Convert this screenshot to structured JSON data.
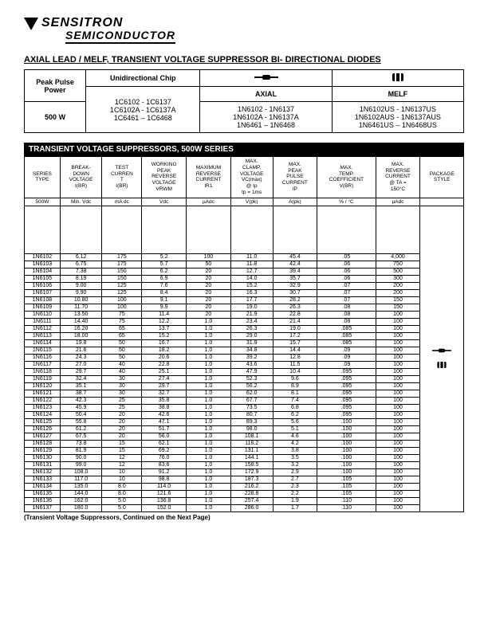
{
  "logo": {
    "line1": "SENSITRON",
    "line2": "SEMICONDUCTOR"
  },
  "main_title": "AXIAL LEAD / MELF, TRANSIENT VOLTAGE SUPPRESSOR BI- DIRECTIONAL DIODES",
  "product_table": {
    "headers": {
      "pulse": "Peak Pulse\nPower",
      "chip": "Unidirectional Chip",
      "axial": "AXIAL",
      "melf": "MELF"
    },
    "power": "500 W",
    "chip_lines": [
      "1C6102 - 1C6137",
      "1C6102A - 1C6137A",
      "1C6461 – 1C6468"
    ],
    "axial_lines": [
      "1N6102 - 1N6137",
      "1N6102A - 1N6137A",
      "1N6461 – 1N6468"
    ],
    "melf_lines": [
      "1N6102US - 1N6137US",
      "1N6102AUS - 1N6137AUS",
      "1N6461US – 1N6468US"
    ]
  },
  "section_title": "TRANSIENT VOLTAGE SUPPRESSORS, 500W SERIES",
  "columns": [
    "SERIES\nTYPE",
    "BREAK-\nDOWN\nVOLTAGE\nI(BR)",
    "TEST\nCURREN\nT\nI(BR)",
    "WORKING\nPEAK\nREVERSE\nVOLTAGE\nVRWM",
    "MAXIMUM\nREVERSE\nCURRENT\nIR1",
    "MAX.\nCLAMP.\nVOLTAGE\nVC(max)\n@ Ip\ntp = 1ms",
    "MAX.\nPEAK\nPULSE\nCURRENT\nIP",
    "MAX.\nTEMP.\nCOEFFICIENT\nV(BR)",
    "MAX.\nREVERSE\nCURRENT\n@ TA =\n150°C",
    "PACKAGE\nSTYLE"
  ],
  "units": [
    "500W",
    "Min. Vdc",
    "mA dc",
    "Vdc",
    "µAdc",
    "V(pk)",
    "A(pk)",
    "% / °C",
    "µAdc",
    ""
  ],
  "rows": [
    [
      "1N6102",
      "6.12",
      "175",
      "5.2",
      "100",
      "11.0",
      "45.4",
      ".05",
      "4,000"
    ],
    [
      "1N6103",
      "6.75",
      "175",
      "5.7",
      "50",
      "11.8",
      "42.4",
      ".06",
      "750"
    ],
    [
      "1N6104",
      "7.38",
      "150",
      "6.2",
      "20",
      "12.7",
      "39.4",
      ".06",
      "500"
    ],
    [
      "1N6105",
      "8.19",
      "150",
      "6.9",
      "20",
      "14.0",
      "35.7",
      ".06",
      "300"
    ],
    [
      "1N6106",
      "9.00",
      "125",
      "7.6",
      "20",
      "15.2",
      "32.9",
      ".07",
      "200"
    ],
    [
      "1N6107",
      "9.90",
      "125",
      "8.4",
      "20",
      "16.3",
      "30.7",
      ".07",
      "200"
    ],
    [
      "1N6108",
      "10.80",
      "100",
      "9.1",
      "20",
      "17.7",
      "28.2",
      ".07",
      "150"
    ],
    [
      "1N6109",
      "11.70",
      "100",
      "9.9",
      "20",
      "19.0",
      "26.3",
      ".08",
      "150"
    ],
    [
      "1N6110",
      "13.50",
      "75",
      "11.4",
      "20",
      "21.9",
      "22.8",
      ".08",
      "100"
    ],
    [
      "1N6111",
      "14.40",
      "75",
      "12.2",
      "1.0",
      "23.4",
      "21.4",
      ".08",
      "100"
    ],
    [
      "1N6112",
      "16.20",
      "65",
      "13.7",
      "1.0",
      "26.3",
      "19.0",
      ".085",
      "100"
    ],
    [
      "1N6113",
      "18.00",
      "65",
      "15.2",
      "1.0",
      "29.0",
      "17.2",
      ".085",
      "100"
    ],
    [
      "1N6114",
      "19.8",
      "50",
      "16.7",
      "1.0",
      "31.9",
      "15.7",
      ".085",
      "100"
    ],
    [
      "1N6115",
      "21.6",
      "50",
      "18.2",
      "1.0",
      "34.8",
      "14.4",
      ".09",
      "100"
    ],
    [
      "1N6116",
      "24.3",
      "50",
      "20.6",
      "1.0",
      "39.2",
      "12.8",
      ".09",
      "100"
    ],
    [
      "1N6117",
      "27.0",
      "40",
      "22.8",
      "1.0",
      "43.6",
      "11.5",
      ".09",
      "100"
    ],
    [
      "1N6118",
      "29.7",
      "40",
      "25.1",
      "1.0",
      "47.9",
      "10.4",
      ".095",
      "100"
    ],
    [
      "1N6119",
      "32.4",
      "30",
      "27.4",
      "1.0",
      "52.3",
      "9.6",
      ".095",
      "100"
    ],
    [
      "1N6120",
      "35.1",
      "30",
      "29.7",
      "1.0",
      "56.2",
      "8.9",
      ".095",
      "100"
    ],
    [
      "1N6121",
      "38.7",
      "30",
      "32.7",
      "1.0",
      "62.0",
      "8.1",
      ".095",
      "100"
    ],
    [
      "1N6122",
      "42.3",
      "25",
      "35.8",
      "1.0",
      "67.7",
      "7.4",
      ".095",
      "100"
    ],
    [
      "1N6123",
      "45.9",
      "25",
      "38.8",
      "1.0",
      "73.5",
      "6.8",
      ".095",
      "100"
    ],
    [
      "1N6124",
      "50.4",
      "20",
      "42.6",
      "1.0",
      "80.7",
      "6.2",
      ".095",
      "100"
    ],
    [
      "1N6125",
      "55.8",
      "20",
      "47.1",
      "1.0",
      "89.3",
      "5.6",
      ".100",
      "100"
    ],
    [
      "1N6126",
      "61.2",
      "20",
      "51.7",
      "1.0",
      "98.0",
      "5.1",
      ".100",
      "100"
    ],
    [
      "1N6127",
      "67.5",
      "20",
      "56.0",
      "1.0",
      "108.1",
      "4.6",
      ".100",
      "100"
    ],
    [
      "1N6128",
      "73.8",
      "15",
      "62.1",
      "1.0",
      "118.2",
      "4.2",
      ".100",
      "100"
    ],
    [
      "1N6129",
      "81.9",
      "15",
      "69.2",
      "1.0",
      "131.1",
      "3.8",
      ".100",
      "100"
    ],
    [
      "1N6130",
      "90.0",
      "12",
      "76.0",
      "1.0",
      "144.1",
      "3.5",
      ".100",
      "100"
    ],
    [
      "1N6131",
      "99.0",
      "12",
      "83.6",
      "1.0",
      "158.5",
      "3.2",
      ".100",
      "100"
    ],
    [
      "1N6132",
      "108.0",
      "10",
      "91.2",
      "1.0",
      "172.9",
      "2.9",
      ".100",
      "100"
    ],
    [
      "1N6133",
      "117.0",
      "10",
      "98.8",
      "1.0",
      "187.3",
      "2.7",
      ".105",
      "100"
    ],
    [
      "1N6134",
      "135.0",
      "8.0",
      "114.0",
      "1.0",
      "216.2",
      "2.3",
      ".105",
      "100"
    ],
    [
      "1N6135",
      "144.0",
      "8.0",
      "121.6",
      "1.0",
      "228.8",
      "2.2",
      ".105",
      "100"
    ],
    [
      "1N6136",
      "162.0",
      "5.0",
      "136.8",
      "1.0",
      "257.4",
      "1.9",
      ".110",
      "100"
    ],
    [
      "1N6137",
      "180.0",
      "5.0",
      "152.0",
      "1.0",
      "286.0",
      "1.7",
      ".110",
      "100"
    ]
  ],
  "footnote": "(Transient Voltage Suppressors, Continued on the Next Page)"
}
